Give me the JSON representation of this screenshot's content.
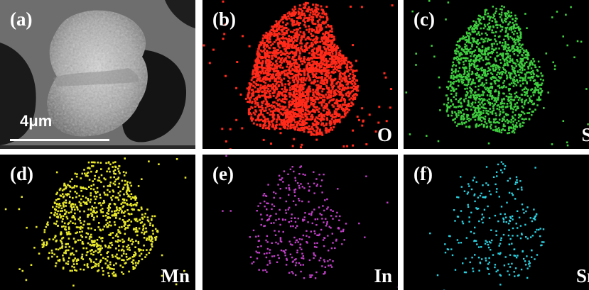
{
  "figure": {
    "panels": [
      {
        "id": "a",
        "label": "(a)",
        "element": "",
        "color": "",
        "type": "sem"
      },
      {
        "id": "b",
        "label": "(b)",
        "element": "O",
        "color": "#ff2a1a",
        "density": 2600
      },
      {
        "id": "c",
        "label": "(c)",
        "element": "Si",
        "color": "#3fcf3f",
        "density": 1500
      },
      {
        "id": "d",
        "label": "(d)",
        "element": "Mn",
        "color": "#e8e82a",
        "density": 900
      },
      {
        "id": "e",
        "label": "(e)",
        "element": "In",
        "color": "#c040c8",
        "density": 320
      },
      {
        "id": "f",
        "label": "(f)",
        "element": "Sn",
        "color": "#2ad0e0",
        "density": 260
      }
    ],
    "scale_bar": {
      "label": "4μm"
    }
  }
}
